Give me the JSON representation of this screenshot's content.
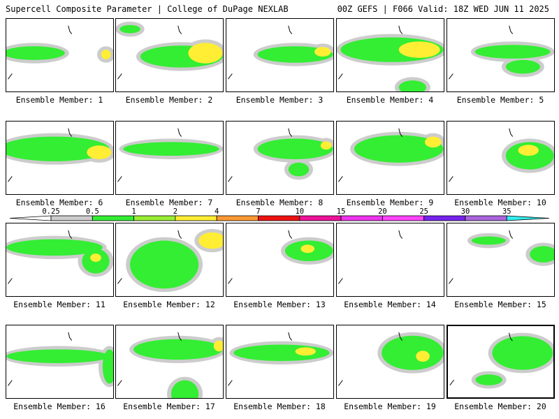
{
  "header": {
    "title": "Supercell Composite Parameter | College of DuPage NEXLAB",
    "run_info": "00Z GEFS | F066 Valid: 18Z WED JUN 11 2025"
  },
  "label_prefix": "Ensemble Member: ",
  "members": [
    {
      "id": 1,
      "label": "Ensemble Member: 1"
    },
    {
      "id": 2,
      "label": "Ensemble Member: 2"
    },
    {
      "id": 3,
      "label": "Ensemble Member: 3"
    },
    {
      "id": 4,
      "label": "Ensemble Member: 4"
    },
    {
      "id": 5,
      "label": "Ensemble Member: 5"
    },
    {
      "id": 6,
      "label": "Ensemble Member: 6"
    },
    {
      "id": 7,
      "label": "Ensemble Member: 7"
    },
    {
      "id": 8,
      "label": "Ensemble Member: 8"
    },
    {
      "id": 9,
      "label": "Ensemble Member: 9"
    },
    {
      "id": 10,
      "label": "Ensemble Member: 10"
    },
    {
      "id": 11,
      "label": "Ensemble Member: 11"
    },
    {
      "id": 12,
      "label": "Ensemble Member: 12"
    },
    {
      "id": 13,
      "label": "Ensemble Member: 13"
    },
    {
      "id": 14,
      "label": "Ensemble Member: 14"
    },
    {
      "id": 15,
      "label": "Ensemble Member: 15"
    },
    {
      "id": 16,
      "label": "Ensemble Member: 16"
    },
    {
      "id": 17,
      "label": "Ensemble Member: 17"
    },
    {
      "id": 18,
      "label": "Ensemble Member: 18"
    },
    {
      "id": 19,
      "label": "Ensemble Member: 19"
    },
    {
      "id": 20,
      "label": "Ensemble Member: 20"
    }
  ],
  "selected_member": 20,
  "colorbar": {
    "ticks": [
      "0.25",
      "0.5",
      "1",
      "2",
      "4",
      "7",
      "10",
      "15",
      "20",
      "25",
      "30",
      "35"
    ],
    "colors": [
      "#cccccc",
      "#33ee33",
      "#99ee33",
      "#ffee33",
      "#ff9933",
      "#ee1111",
      "#ee1199",
      "#ee33ee",
      "#ff44ff",
      "#7722ee",
      "#aa66dd",
      "#33eeee"
    ]
  }
}
